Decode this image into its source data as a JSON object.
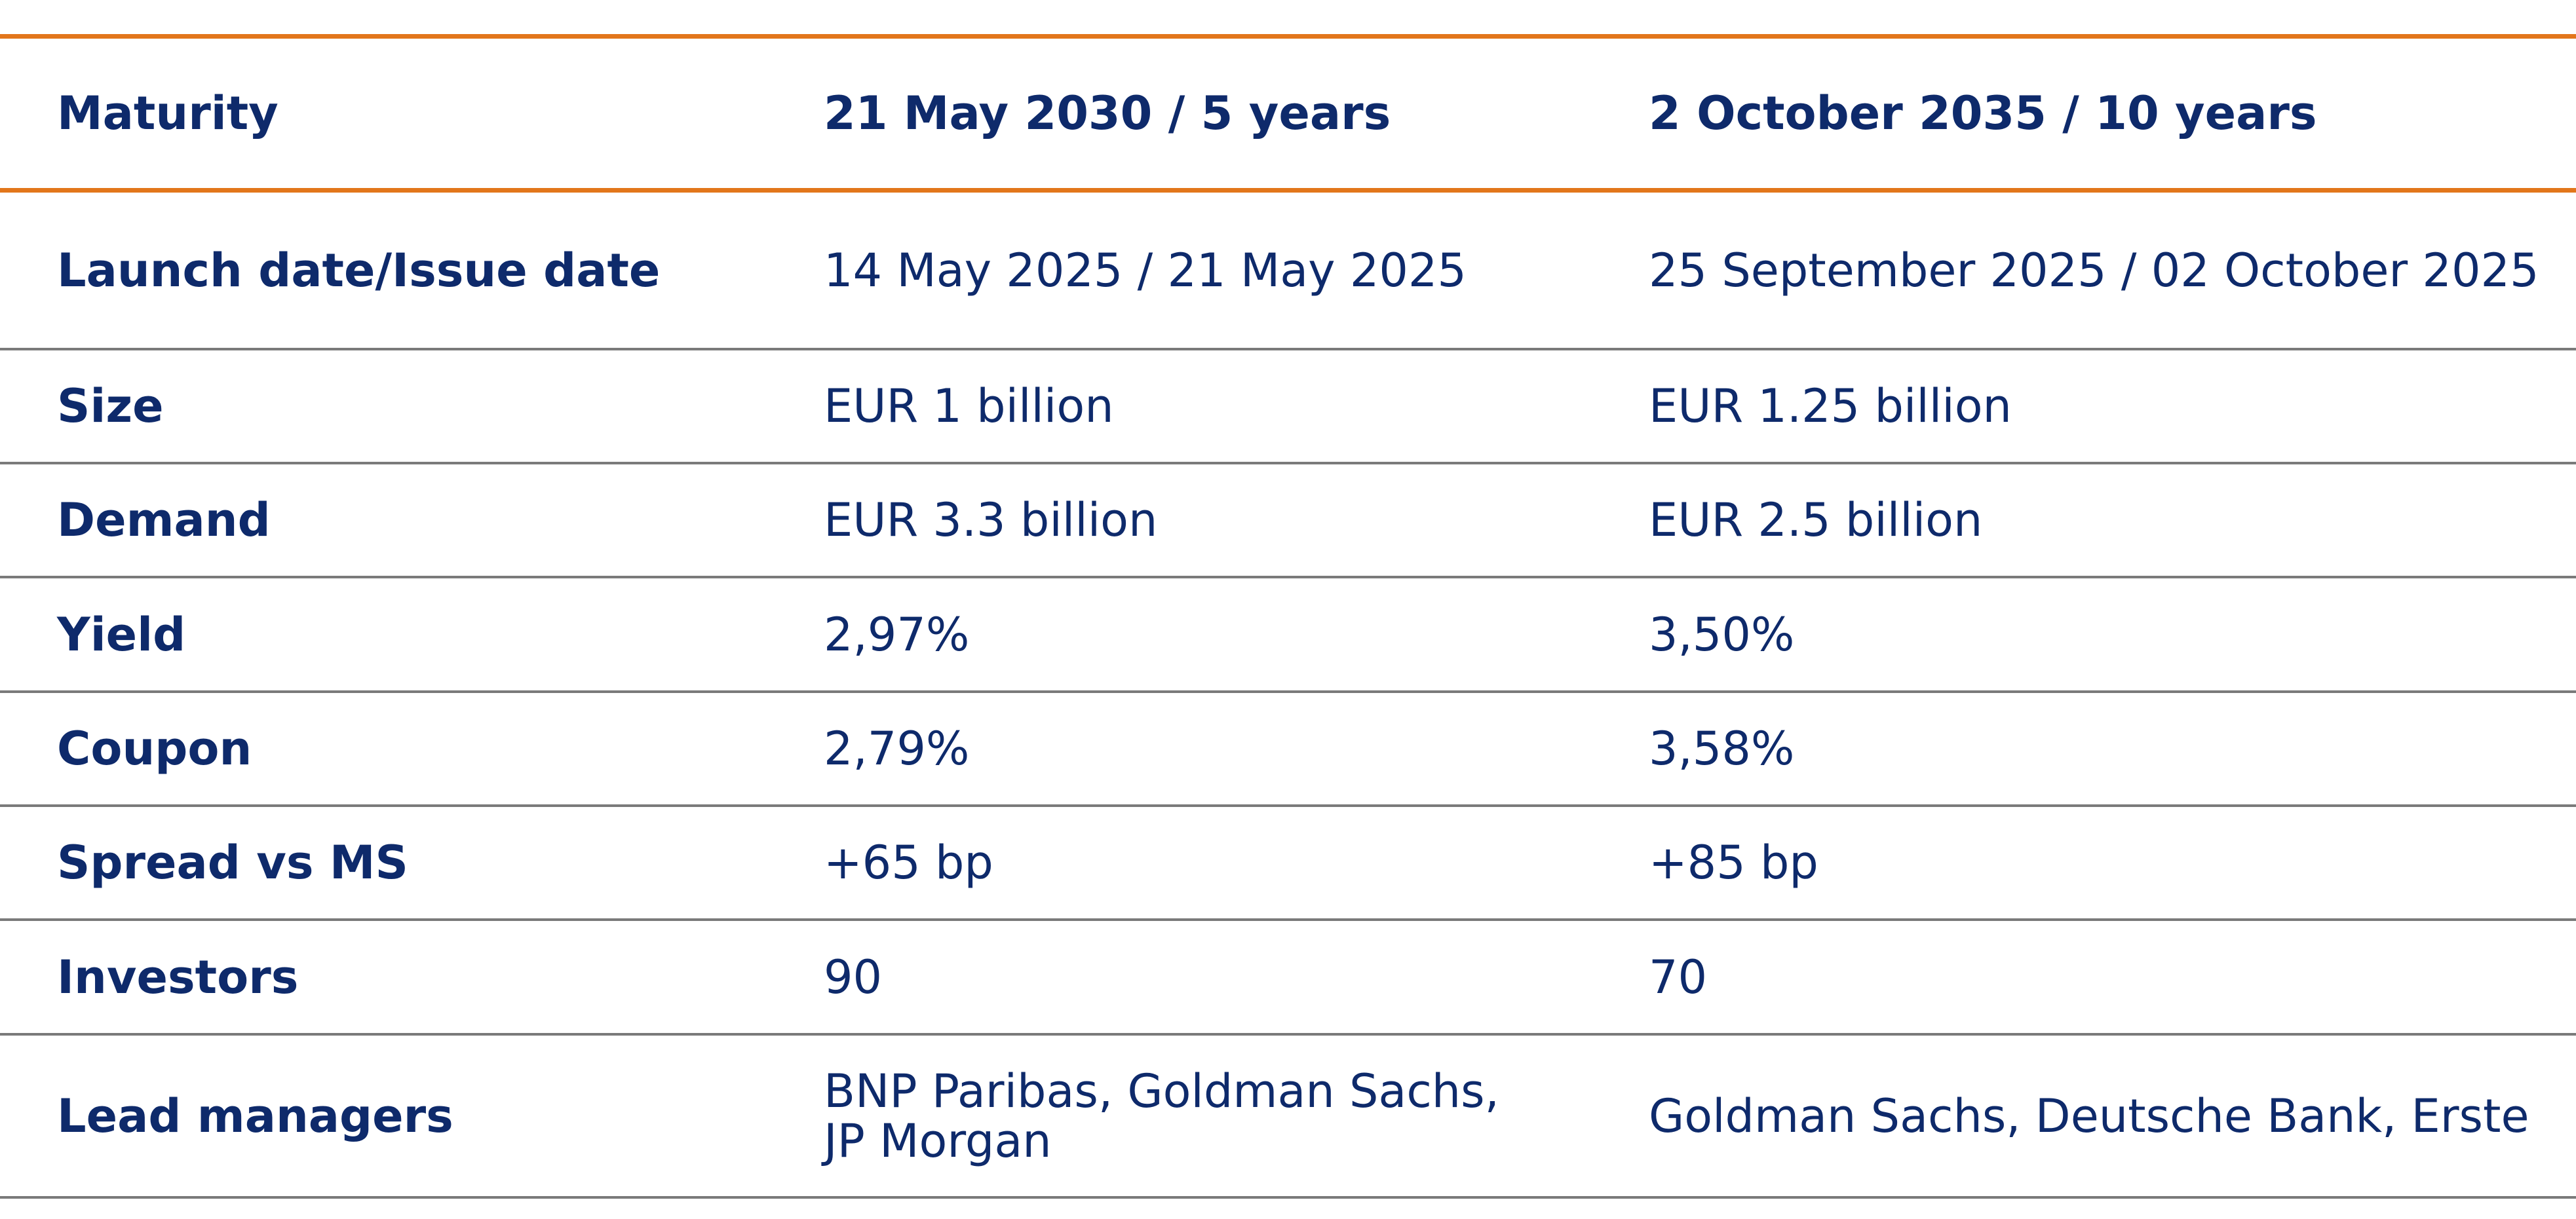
{
  "header": {
    "label": "Maturity",
    "col1": "21 May 2030 / 5 years",
    "col2": "2 October 2035 / 10 years"
  },
  "rows": [
    {
      "label": "Launch date/Issue date",
      "col1": "14 May 2025 / 21 May 2025",
      "col2": "25 September 2025 / 02 October 2025"
    },
    {
      "label": "Size",
      "col1": "EUR 1 billion",
      "col2": "EUR 1.25 billion"
    },
    {
      "label": "Demand",
      "col1": "EUR 3.3 billion",
      "col2": "EUR 2.5 billion"
    },
    {
      "label": "Yield",
      "col1": "2,97%",
      "col2": "3,50%"
    },
    {
      "label": "Coupon",
      "col1": "2,79%",
      "col2": "3,58%"
    },
    {
      "label": "Spread vs MS",
      "col1": "+65 bp",
      "col2": "+85 bp"
    },
    {
      "label": "Investors",
      "col1": "90",
      "col2": "70"
    },
    {
      "label": "Lead managers",
      "col1": "BNP Paribas, Goldman Sachs,\nJP Morgan",
      "col2": "Goldman Sachs, Deutsche Bank, Erste"
    }
  ],
  "colors": {
    "text": "#0e2a6b",
    "accent_rule": "#e2761b",
    "row_rule": "#7a7a7a"
  }
}
